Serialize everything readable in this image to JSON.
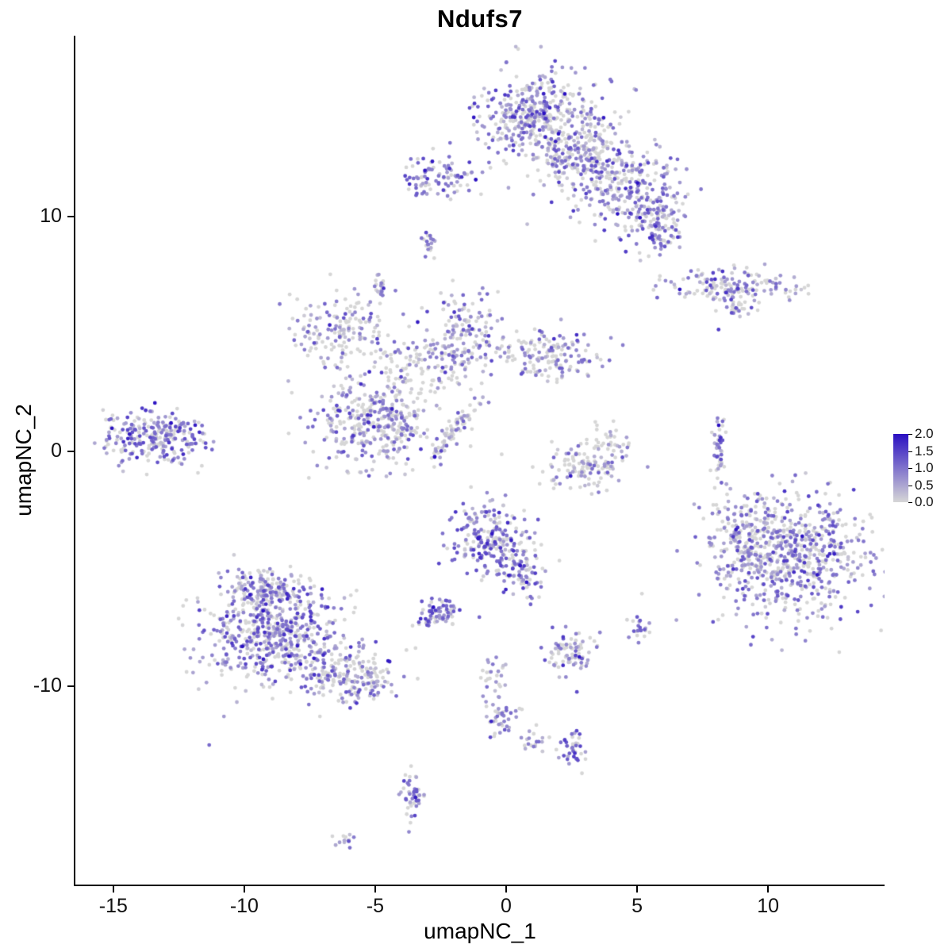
{
  "chart_data": {
    "type": "scatter",
    "title": "Ndufs7",
    "xlabel": "umapNC_1",
    "ylabel": "umapNC_2",
    "grid": false,
    "axes": {
      "x_range": [
        -16.45,
        14.45
      ],
      "y_range": [
        -18.45,
        17.7
      ],
      "x_tick_labels": [
        "-15",
        "-10",
        "-5",
        "0",
        "5",
        "10"
      ],
      "x_tick_values": [
        -15,
        -10,
        -5,
        0,
        5,
        10
      ],
      "y_tick_labels": [
        "10",
        "0",
        "-10"
      ],
      "y_tick_values": [
        10,
        0,
        -10
      ]
    },
    "legend": {
      "position": "right",
      "labels": [
        "2.0",
        "1.5",
        "1.0",
        "0.5",
        "0.0"
      ],
      "values": [
        2.0,
        1.5,
        1.0,
        0.5,
        0.0
      ],
      "min": 0.0,
      "max": 2.0,
      "high_color": "#2a10c2",
      "low_color": "#d6d6d6"
    },
    "point_radius": 2.4,
    "seed": 7,
    "expression_sd": 0.45,
    "clusters": [
      {
        "name": "top-main",
        "cx": 1.2,
        "cy": 14.3,
        "sx": 1.15,
        "sy": 0.95,
        "n": 420,
        "mean": 0.75,
        "p0": 0.35
      },
      {
        "name": "top-main-east",
        "cx": 2.9,
        "cy": 12.7,
        "sx": 0.8,
        "sy": 0.8,
        "n": 200,
        "mean": 0.7,
        "p0": 0.4
      },
      {
        "name": "top-right-arm",
        "cx": 4.3,
        "cy": 11.4,
        "sx": 1.1,
        "sy": 0.8,
        "n": 260,
        "mean": 0.75,
        "p0": 0.35
      },
      {
        "name": "top-right-lobe",
        "cx": 5.7,
        "cy": 9.7,
        "sx": 0.55,
        "sy": 0.75,
        "n": 130,
        "mean": 0.8,
        "p0": 0.3
      },
      {
        "name": "top-left-small",
        "cx": -2.6,
        "cy": 11.6,
        "sx": 0.75,
        "sy": 0.5,
        "n": 95,
        "mean": 0.85,
        "p0": 0.3
      },
      {
        "name": "tiny-a",
        "cx": -2.9,
        "cy": 8.8,
        "sx": 0.15,
        "sy": 0.3,
        "n": 22,
        "mean": 0.9,
        "p0": 0.3
      },
      {
        "name": "tiny-b",
        "cx": -4.7,
        "cy": 7.1,
        "sx": 0.18,
        "sy": 0.28,
        "n": 20,
        "mean": 0.8,
        "p0": 0.3
      },
      {
        "name": "right-arm",
        "cx": 8.5,
        "cy": 7.0,
        "sx": 1.35,
        "sy": 0.33,
        "n": 150,
        "mean": 0.75,
        "p0": 0.35
      },
      {
        "name": "right-arm-sub",
        "cx": 8.8,
        "cy": 6.2,
        "sx": 0.45,
        "sy": 0.25,
        "n": 30,
        "mean": 0.7,
        "p0": 0.4
      },
      {
        "name": "single-dot",
        "cx": 8.1,
        "cy": 5.2,
        "sx": 0.05,
        "sy": 0.05,
        "n": 1,
        "mean": 1.2,
        "p0": 0.0
      },
      {
        "name": "mid-left-net",
        "cx": -6.4,
        "cy": 5.1,
        "sx": 1.05,
        "sy": 0.85,
        "n": 170,
        "mean": 0.6,
        "p0": 0.45
      },
      {
        "name": "mid-center",
        "cx": -1.5,
        "cy": 5.0,
        "sx": 0.75,
        "sy": 0.85,
        "n": 170,
        "mean": 0.7,
        "p0": 0.4
      },
      {
        "name": "mid-east",
        "cx": 1.6,
        "cy": 4.1,
        "sx": 0.85,
        "sy": 0.5,
        "n": 150,
        "mean": 0.75,
        "p0": 0.35
      },
      {
        "name": "mid-bridge",
        "cx": -3.6,
        "cy": 3.4,
        "sx": 1.0,
        "sy": 0.8,
        "n": 110,
        "mean": 0.6,
        "p0": 0.5
      },
      {
        "name": "center-blob",
        "cx": -4.9,
        "cy": 1.1,
        "sx": 1.15,
        "sy": 0.9,
        "n": 360,
        "mean": 0.7,
        "p0": 0.4
      },
      {
        "name": "diag-streak",
        "cx": -1.9,
        "cy": 1.0,
        "sx": 0.12,
        "sy": 0.75,
        "n": 70,
        "mean": 0.6,
        "p0": 0.45,
        "rot": -0.6
      },
      {
        "name": "far-left",
        "cx": -13.4,
        "cy": 0.6,
        "sx": 1.0,
        "sy": 0.55,
        "n": 260,
        "mean": 0.9,
        "p0": 0.3
      },
      {
        "name": "east-mid",
        "cx": 2.9,
        "cy": -0.6,
        "sx": 0.8,
        "sy": 0.5,
        "n": 120,
        "mean": 0.55,
        "p0": 0.5
      },
      {
        "name": "east-mid-tail",
        "cx": 3.7,
        "cy": 0.4,
        "sx": 0.5,
        "sy": 0.5,
        "n": 35,
        "mean": 0.5,
        "p0": 0.55
      },
      {
        "name": "right-sliver",
        "cx": 8.1,
        "cy": 0.1,
        "sx": 0.14,
        "sy": 0.75,
        "n": 45,
        "mean": 0.85,
        "p0": 0.3
      },
      {
        "name": "right-big",
        "cx": 10.9,
        "cy": -4.4,
        "sx": 1.5,
        "sy": 1.3,
        "n": 680,
        "mean": 0.8,
        "p0": 0.35
      },
      {
        "name": "right-big-west",
        "cx": 9.1,
        "cy": -3.6,
        "sx": 0.5,
        "sy": 0.9,
        "n": 110,
        "mean": 0.6,
        "p0": 0.45
      },
      {
        "name": "center-south",
        "cx": -0.6,
        "cy": -3.7,
        "sx": 0.75,
        "sy": 0.85,
        "n": 220,
        "mean": 0.95,
        "p0": 0.25
      },
      {
        "name": "center-south-arm",
        "cx": 0.7,
        "cy": -5.1,
        "sx": 0.45,
        "sy": 0.55,
        "n": 70,
        "mean": 0.85,
        "p0": 0.3
      },
      {
        "name": "small-dense",
        "cx": -2.6,
        "cy": -6.9,
        "sx": 0.38,
        "sy": 0.33,
        "n": 75,
        "mean": 1.0,
        "p0": 0.25
      },
      {
        "name": "southwest-main",
        "cx": -8.9,
        "cy": -7.7,
        "sx": 1.35,
        "sy": 1.15,
        "n": 620,
        "mean": 0.8,
        "p0": 0.3
      },
      {
        "name": "southwest-tip",
        "cx": -9.1,
        "cy": -5.7,
        "sx": 0.55,
        "sy": 0.35,
        "n": 90,
        "mean": 0.85,
        "p0": 0.3
      },
      {
        "name": "southwest-tail",
        "cx": -6.0,
        "cy": -9.6,
        "sx": 1.0,
        "sy": 0.6,
        "n": 200,
        "mean": 0.7,
        "p0": 0.4
      },
      {
        "name": "south-small",
        "cx": 2.4,
        "cy": -8.6,
        "sx": 0.5,
        "sy": 0.5,
        "n": 80,
        "mean": 0.8,
        "p0": 0.35
      },
      {
        "name": "south-dots",
        "cx": 5.1,
        "cy": -7.5,
        "sx": 0.18,
        "sy": 0.35,
        "n": 22,
        "mean": 0.9,
        "p0": 0.3
      },
      {
        "name": "trail-a",
        "cx": -0.4,
        "cy": -9.6,
        "sx": 0.3,
        "sy": 0.4,
        "n": 25,
        "mean": 0.6,
        "p0": 0.45
      },
      {
        "name": "trail-b",
        "cx": -0.2,
        "cy": -11.4,
        "sx": 0.28,
        "sy": 0.55,
        "n": 40,
        "mean": 0.9,
        "p0": 0.3
      },
      {
        "name": "trail-c",
        "cx": 1.0,
        "cy": -12.4,
        "sx": 0.3,
        "sy": 0.25,
        "n": 18,
        "mean": 0.8,
        "p0": 0.35
      },
      {
        "name": "south-t",
        "cx": 2.5,
        "cy": -12.7,
        "sx": 0.28,
        "sy": 0.4,
        "n": 40,
        "mean": 0.85,
        "p0": 0.3
      },
      {
        "name": "south-vert",
        "cx": -3.6,
        "cy": -14.6,
        "sx": 0.22,
        "sy": 0.65,
        "n": 45,
        "mean": 0.9,
        "p0": 0.3
      },
      {
        "name": "south-tiny",
        "cx": -6.1,
        "cy": -16.6,
        "sx": 0.3,
        "sy": 0.15,
        "n": 14,
        "mean": 0.7,
        "p0": 0.4
      }
    ]
  }
}
